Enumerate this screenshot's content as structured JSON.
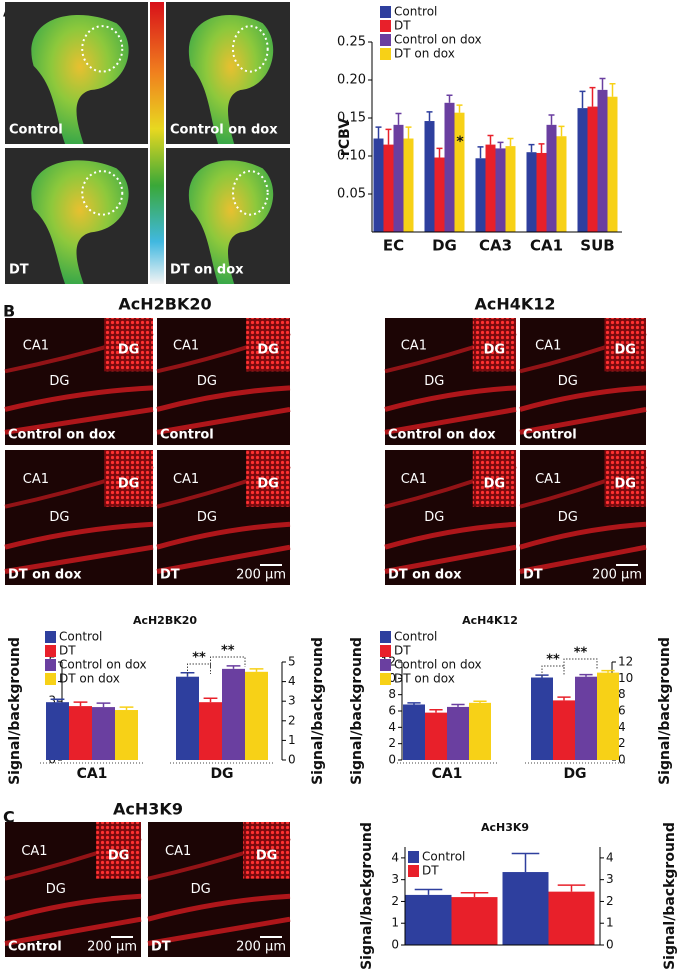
{
  "figure": {
    "panel_labels": [
      "A",
      "B",
      "C"
    ],
    "panel_a": {
      "image_labels": [
        "Control",
        "Control on dox",
        "DT",
        "DT on dox"
      ]
    },
    "panel_b": {
      "left_title": "AcH2BK20",
      "right_title": "AcH4K12",
      "image_labels": [
        "Control on dox",
        "Control",
        "DT on dox",
        "DT"
      ],
      "regions": [
        "CA1",
        "DG"
      ],
      "scale_bar": "200 µm"
    },
    "panel_c": {
      "title": "AcH3K9",
      "image_labels": [
        "Control",
        "DT"
      ],
      "regions": [
        "CA1",
        "DG"
      ],
      "scale_bar": "200 µm"
    }
  },
  "chart_data": [
    {
      "type": "bar",
      "ylabel": "rCBV",
      "categories": [
        "EC",
        "DG",
        "CA3",
        "CA1",
        "SUB"
      ],
      "series": [
        {
          "name": "Control",
          "color": "#2e3f9e",
          "values": [
            0.123,
            0.146,
            0.097,
            0.105,
            0.163
          ],
          "errors": [
            0.015,
            0.012,
            0.015,
            0.01,
            0.022
          ]
        },
        {
          "name": "DT",
          "color": "#e8202a",
          "values": [
            0.115,
            0.098,
            0.115,
            0.104,
            0.165
          ],
          "errors": [
            0.02,
            0.012,
            0.012,
            0.012,
            0.025
          ]
        },
        {
          "name": "Control on dox",
          "color": "#6a3fa0",
          "values": [
            0.141,
            0.17,
            0.11,
            0.141,
            0.187
          ],
          "errors": [
            0.015,
            0.01,
            0.008,
            0.013,
            0.015
          ]
        },
        {
          "name": "DT on dox",
          "color": "#f7d117",
          "values": [
            0.123,
            0.157,
            0.113,
            0.126,
            0.178
          ],
          "errors": [
            0.015,
            0.01,
            0.01,
            0.013,
            0.017
          ]
        }
      ],
      "ylim": [
        0,
        0.25
      ],
      "yticks": [
        0.05,
        {
          "value": 0.1,
          "label": "0.10"
        },
        0.15,
        {
          "value": 0.2,
          "label": "0.20"
        },
        0.25
      ],
      "legend": "top-left",
      "annotations": [
        "*"
      ]
    },
    {
      "type": "bar",
      "title": "AcH2BK20",
      "ylabel": "Signal/background",
      "y2label": "Signal/background",
      "categories": [
        "CA1",
        "DG"
      ],
      "series": [
        {
          "name": "Control",
          "color": "#2e3f9e",
          "values": [
            2.95,
            4.25
          ],
          "errors": [
            0.15,
            0.2
          ]
        },
        {
          "name": "DT",
          "color": "#e8202a",
          "values": [
            2.75,
            2.95
          ],
          "errors": [
            0.2,
            0.2
          ]
        },
        {
          "name": "Control on dox",
          "color": "#6a3fa0",
          "values": [
            2.7,
            4.65
          ],
          "errors": [
            0.2,
            0.15
          ]
        },
        {
          "name": "DT on dox",
          "color": "#f7d117",
          "values": [
            2.55,
            4.5
          ],
          "errors": [
            0.15,
            0.15
          ]
        }
      ],
      "ylim": [
        0,
        5
      ],
      "yticks": [
        0,
        1,
        2,
        3,
        4,
        5
      ],
      "y2lim": [
        0,
        5
      ],
      "y2ticks": [
        0,
        1,
        2,
        3,
        4,
        5
      ],
      "legend": "top-left",
      "annotations": [
        "**",
        "**"
      ]
    },
    {
      "type": "bar",
      "title": "AcH4K12",
      "ylabel": "Signal/background",
      "y2label": "Signal/background",
      "categories": [
        "CA1",
        "DG"
      ],
      "series": [
        {
          "name": "Control",
          "color": "#2e3f9e",
          "values": [
            6.8,
            10.1
          ],
          "errors": [
            0.2,
            0.3
          ]
        },
        {
          "name": "DT",
          "color": "#e8202a",
          "values": [
            5.8,
            7.3
          ],
          "errors": [
            0.35,
            0.4
          ]
        },
        {
          "name": "Control on dox",
          "color": "#6a3fa0",
          "values": [
            6.5,
            10.2
          ],
          "errors": [
            0.3,
            0.25
          ]
        },
        {
          "name": "DT on dox",
          "color": "#f7d117",
          "values": [
            7.0,
            10.7
          ],
          "errors": [
            0.2,
            0.25
          ]
        }
      ],
      "ylim": [
        0,
        12
      ],
      "yticks": [
        0,
        2,
        4,
        6,
        8,
        10,
        12
      ],
      "y2lim": [
        0,
        12
      ],
      "y2ticks": [
        0,
        2,
        4,
        6,
        8,
        10,
        12
      ],
      "legend": "top-left",
      "annotations": [
        "**",
        "**"
      ]
    },
    {
      "type": "bar",
      "title": "AcH3K9",
      "ylabel": "Signal/background",
      "y2label": "Signal/background",
      "categories": [
        null,
        null
      ],
      "series": [
        {
          "name": "Control",
          "color": "#2e3f9e",
          "values": [
            2.3,
            3.35
          ],
          "errors": [
            0.25,
            0.85
          ]
        },
        {
          "name": "DT",
          "color": "#e8202a",
          "values": [
            2.2,
            2.45
          ],
          "errors": [
            0.2,
            0.3
          ]
        }
      ],
      "ylim": [
        0,
        4.5
      ],
      "yticks": [
        0,
        1,
        2,
        3,
        4
      ],
      "y2lim": [
        0,
        4.5
      ],
      "y2ticks": [
        0,
        1,
        2,
        3,
        4
      ],
      "legend": "top-left"
    }
  ]
}
